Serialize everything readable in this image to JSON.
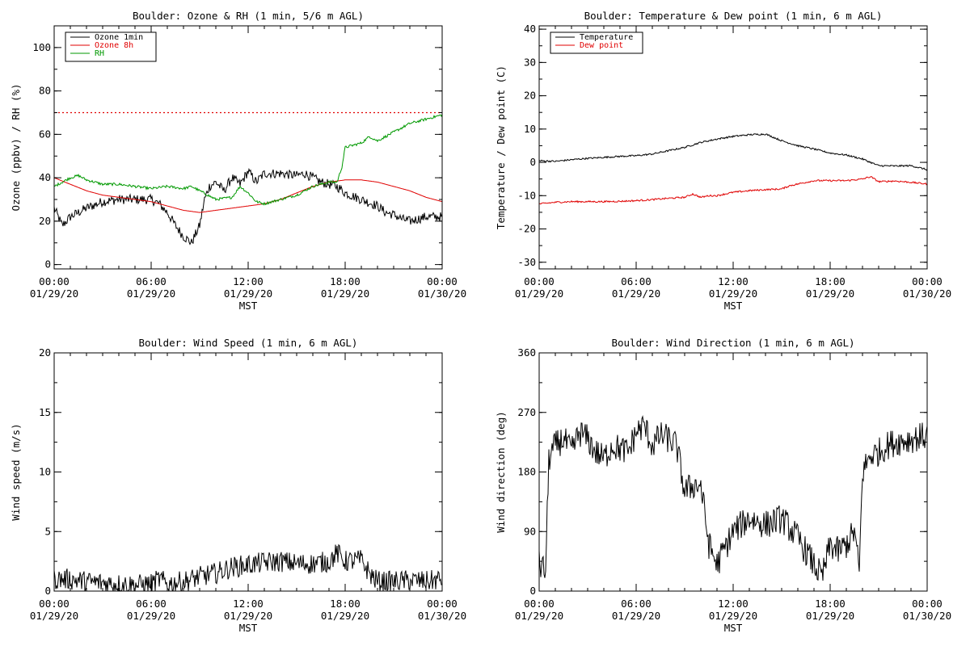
{
  "chart_data": [
    {
      "type": "line",
      "title": "Boulder: Ozone & RH (1 min, 5/6 m AGL)",
      "ylabel": "Ozone (ppbv) / RH (%)",
      "xlabel": "MST",
      "ylim": [
        -2,
        110
      ],
      "yticks": [
        0,
        20,
        40,
        60,
        80,
        100
      ],
      "xticks": [
        {
          "top": "00:00",
          "bottom": "01/29/20"
        },
        {
          "top": "06:00",
          "bottom": "01/29/20"
        },
        {
          "top": "12:00",
          "bottom": "01/29/20"
        },
        {
          "top": "18:00",
          "bottom": "01/29/20"
        },
        {
          "top": "00:00",
          "bottom": "01/30/20"
        }
      ],
      "legend": {
        "placement": "top-left",
        "entries": [
          {
            "label": "Ozone 1min",
            "color": "#000000"
          },
          {
            "label": "Ozone 8h",
            "color": "#e00000"
          },
          {
            "label": "RH",
            "color": "#009900"
          }
        ]
      },
      "reference_line": {
        "y": 70,
        "color": "#e00000",
        "style": "dotted"
      },
      "series": [
        {
          "name": "Ozone 1min",
          "color": "#000000",
          "noise": 2.2,
          "x": [
            0,
            0.5,
            1,
            2,
            3,
            4,
            5,
            6,
            6.5,
            7,
            7.5,
            8,
            8.5,
            9,
            9.3,
            9.6,
            10,
            10.5,
            11,
            11.5,
            12,
            12.5,
            13,
            14,
            15,
            15.5,
            16,
            16.5,
            17,
            17.5,
            18,
            19,
            20,
            20.5,
            21,
            21.5,
            22,
            22.5,
            23,
            24
          ],
          "y": [
            26,
            18,
            22,
            26,
            29,
            30,
            30,
            30,
            28,
            24,
            18,
            13,
            10,
            18,
            30,
            36,
            38,
            34,
            40,
            37,
            43,
            38,
            42,
            42,
            41,
            42,
            40,
            38,
            37,
            36,
            33,
            30,
            27,
            24,
            23,
            21,
            20,
            21,
            22,
            22
          ]
        },
        {
          "name": "Ozone 8h",
          "color": "#e00000",
          "noise": 0,
          "x": [
            0,
            1,
            2,
            3,
            4,
            5,
            6,
            7,
            8,
            9,
            10,
            11,
            12,
            13,
            14,
            15,
            16,
            17,
            18,
            19,
            20,
            21,
            22,
            23,
            24
          ],
          "y": [
            40,
            37,
            34,
            32,
            31,
            30,
            29,
            27,
            25,
            24,
            25,
            26,
            27,
            28,
            30,
            33,
            36,
            38,
            39,
            39,
            38,
            36,
            34,
            31,
            29
          ]
        },
        {
          "name": "RH",
          "color": "#009900",
          "noise": 0.6,
          "x": [
            0,
            0.5,
            1,
            1.5,
            2,
            3,
            4,
            5,
            6,
            7,
            8,
            8.5,
            9,
            9.5,
            10,
            11,
            11.5,
            12,
            12.5,
            13,
            14,
            15,
            15.5,
            16,
            16.5,
            17,
            17.5,
            17.8,
            18,
            18.5,
            19,
            19.5,
            20,
            21,
            22,
            23,
            24
          ],
          "y": [
            36,
            38,
            40,
            41,
            39,
            37,
            37,
            36,
            35,
            36,
            35,
            36,
            34,
            32,
            30,
            31,
            36,
            33,
            29,
            28,
            30,
            32,
            34,
            36,
            37,
            38,
            38,
            45,
            54,
            55,
            56,
            59,
            57,
            61,
            65,
            67,
            69
          ]
        }
      ]
    },
    {
      "type": "line",
      "title": "Boulder: Temperature & Dew point (1 min, 6 m AGL)",
      "ylabel": "Temperature / Dew point (C)",
      "xlabel": "MST",
      "ylim": [
        -32,
        41
      ],
      "yticks": [
        -30,
        -20,
        -10,
        0,
        10,
        20,
        30,
        40
      ],
      "xticks": [
        {
          "top": "00:00",
          "bottom": "01/29/20"
        },
        {
          "top": "06:00",
          "bottom": "01/29/20"
        },
        {
          "top": "12:00",
          "bottom": "01/29/20"
        },
        {
          "top": "18:00",
          "bottom": "01/29/20"
        },
        {
          "top": "00:00",
          "bottom": "01/30/20"
        }
      ],
      "legend": {
        "placement": "top-left",
        "entries": [
          {
            "label": "Temperature",
            "color": "#000000"
          },
          {
            "label": "Dew point",
            "color": "#e00000"
          }
        ]
      },
      "series": [
        {
          "name": "Temperature",
          "color": "#000000",
          "noise": 0.25,
          "x": [
            0,
            1,
            2,
            3,
            4,
            5,
            6,
            7,
            8,
            9,
            10,
            11,
            12,
            13,
            14,
            15,
            16,
            17,
            18,
            19,
            20,
            21,
            22,
            23,
            24
          ],
          "y": [
            0.5,
            0.3,
            0.8,
            1.2,
            1.5,
            1.8,
            2,
            2.5,
            3.5,
            4.5,
            6,
            7,
            7.8,
            8.3,
            8.5,
            6.5,
            5,
            4,
            2.8,
            2.2,
            1,
            -1,
            -1.1,
            -1,
            -2.2
          ]
        },
        {
          "name": "Dew point",
          "color": "#e00000",
          "noise": 0.25,
          "x": [
            0,
            1,
            2,
            3,
            4,
            5,
            6,
            7,
            8,
            9,
            9.5,
            10,
            10.5,
            11,
            12,
            13,
            14,
            15,
            15.5,
            16,
            17,
            18,
            19,
            20,
            20.5,
            21,
            22,
            23,
            24
          ],
          "y": [
            -12.5,
            -12,
            -11.8,
            -11.8,
            -11.8,
            -11.7,
            -11.5,
            -11.2,
            -10.8,
            -10.5,
            -9.5,
            -10.5,
            -10,
            -10,
            -9,
            -8.5,
            -8.2,
            -8,
            -7,
            -6.5,
            -5.5,
            -5.5,
            -5.5,
            -5,
            -4.3,
            -5.8,
            -5.6,
            -6,
            -6.5
          ]
        }
      ]
    },
    {
      "type": "line",
      "title": "Boulder: Wind Speed (1 min, 6 m AGL)",
      "ylabel": "Wind speed (m/s)",
      "xlabel": "MST",
      "ylim": [
        0,
        20
      ],
      "yticks": [
        0,
        5,
        10,
        15,
        20
      ],
      "xticks": [
        {
          "top": "00:00",
          "bottom": "01/29/20"
        },
        {
          "top": "06:00",
          "bottom": "01/29/20"
        },
        {
          "top": "12:00",
          "bottom": "01/29/20"
        },
        {
          "top": "18:00",
          "bottom": "01/29/20"
        },
        {
          "top": "00:00",
          "bottom": "01/30/20"
        }
      ],
      "series": [
        {
          "color": "#000000",
          "noise": 0.9,
          "x": [
            0,
            1,
            2,
            3,
            4,
            5,
            6,
            6.5,
            7,
            8,
            9,
            10,
            11,
            12,
            13,
            14,
            15,
            16,
            17,
            17.5,
            18,
            19,
            19.5,
            20,
            21,
            22,
            23,
            24
          ],
          "y": [
            1,
            1,
            0.8,
            0.7,
            0.6,
            0.5,
            0.6,
            1,
            0.6,
            0.8,
            1.2,
            1.5,
            2,
            2.2,
            2.4,
            2.5,
            2.3,
            2.3,
            2.5,
            3.2,
            2.5,
            2.6,
            1.5,
            0.8,
            0.8,
            0.9,
            0.8,
            1
          ]
        }
      ]
    },
    {
      "type": "line",
      "title": "Boulder: Wind Direction (1 min, 6 m AGL)",
      "ylabel": "Wind direction (deg)",
      "xlabel": "MST",
      "ylim": [
        0,
        360
      ],
      "yticks": [
        0,
        90,
        180,
        270,
        360
      ],
      "xticks": [
        {
          "top": "00:00",
          "bottom": "01/29/20"
        },
        {
          "top": "06:00",
          "bottom": "01/29/20"
        },
        {
          "top": "12:00",
          "bottom": "01/29/20"
        },
        {
          "top": "18:00",
          "bottom": "01/29/20"
        },
        {
          "top": "00:00",
          "bottom": "01/30/20"
        }
      ],
      "series": [
        {
          "color": "#000000",
          "noise": 22,
          "x": [
            0,
            0.4,
            0.6,
            1,
            1.5,
            2,
            2.5,
            3,
            3.5,
            4,
            4.5,
            5,
            5.5,
            6,
            6.5,
            7,
            7.5,
            8,
            8.5,
            9,
            9.5,
            10,
            10.5,
            11,
            12,
            13,
            14,
            15,
            16,
            17,
            17.5,
            18,
            18.5,
            19,
            19.5,
            19.8,
            20,
            20.5,
            21,
            21.5,
            22,
            23,
            24
          ],
          "y": [
            40,
            30,
            200,
            220,
            230,
            210,
            240,
            230,
            210,
            200,
            220,
            215,
            210,
            240,
            250,
            220,
            235,
            230,
            220,
            150,
            160,
            160,
            70,
            40,
            90,
            110,
            100,
            110,
            80,
            40,
            20,
            70,
            60,
            70,
            90,
            30,
            180,
            205,
            210,
            220,
            225,
            230,
            235
          ]
        }
      ]
    }
  ]
}
